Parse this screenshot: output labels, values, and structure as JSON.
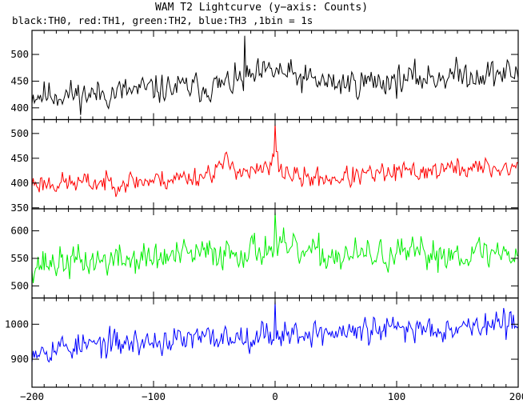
{
  "chart_data": {
    "type": "line",
    "title": "WAM T2 Lightcurve (y−axis: Counts)",
    "subtitle": "black:TH0, red:TH1, green:TH2, blue:TH3 ,1bin = 1s",
    "xlim": [
      -200,
      200
    ],
    "x_ticks": [
      -200,
      -100,
      0,
      100,
      200
    ],
    "x_tick_labels": [
      "−200",
      "−100",
      "0",
      "100",
      "200"
    ],
    "bin_seconds": 1,
    "panels": [
      {
        "series": "TH0",
        "color": "#000000",
        "ylim": [
          378,
          545
        ],
        "y_ticks": [
          400,
          450,
          500
        ],
        "y_tick_labels": [
          "400",
          "450",
          "500"
        ],
        "trend": [
          [
            -200,
            425
          ],
          [
            -150,
            425
          ],
          [
            -100,
            435
          ],
          [
            -50,
            440
          ],
          [
            -20,
            455
          ],
          [
            0,
            470
          ],
          [
            20,
            455
          ],
          [
            50,
            445
          ],
          [
            100,
            452
          ],
          [
            150,
            462
          ],
          [
            200,
            465
          ]
        ],
        "peak_x": -25,
        "peak_y": 535,
        "noise": 28,
        "seed": 11
      },
      {
        "series": "TH1",
        "color": "#ff0000",
        "ylim": [
          348,
          528
        ],
        "y_ticks": [
          350,
          400,
          450,
          500
        ],
        "y_tick_labels": [
          "350",
          "400",
          "450",
          "500"
        ],
        "trend": [
          [
            -200,
            400
          ],
          [
            -150,
            400
          ],
          [
            -100,
            405
          ],
          [
            -60,
            415
          ],
          [
            -40,
            440
          ],
          [
            -20,
            420
          ],
          [
            -3,
            430
          ],
          [
            0,
            470
          ],
          [
            3,
            430
          ],
          [
            20,
            410
          ],
          [
            50,
            410
          ],
          [
            100,
            420
          ],
          [
            150,
            430
          ],
          [
            200,
            430
          ]
        ],
        "peak_x": 0,
        "peak_y": 520,
        "noise": 22,
        "seed": 23
      },
      {
        "series": "TH2",
        "color": "#00ee00",
        "ylim": [
          478,
          640
        ],
        "y_ticks": [
          500,
          550,
          600
        ],
        "y_tick_labels": [
          "500",
          "550",
          "600"
        ],
        "trend": [
          [
            -200,
            540
          ],
          [
            -150,
            545
          ],
          [
            -100,
            550
          ],
          [
            -50,
            560
          ],
          [
            -20,
            565
          ],
          [
            0,
            570
          ],
          [
            20,
            560
          ],
          [
            50,
            555
          ],
          [
            100,
            555
          ],
          [
            150,
            560
          ],
          [
            200,
            560
          ]
        ],
        "peak_x": 0,
        "peak_y": 635,
        "noise": 30,
        "seed": 37
      },
      {
        "series": "TH3",
        "color": "#0000ff",
        "ylim": [
          820,
          1075
        ],
        "y_ticks": [
          900,
          1000
        ],
        "y_tick_labels": [
          "900",
          "1000"
        ],
        "trend": [
          [
            -200,
            930
          ],
          [
            -150,
            940
          ],
          [
            -100,
            950
          ],
          [
            -50,
            960
          ],
          [
            0,
            975
          ],
          [
            50,
            975
          ],
          [
            100,
            985
          ],
          [
            150,
            995
          ],
          [
            200,
            1000
          ]
        ],
        "peak_x": 0,
        "peak_y": 1068,
        "noise": 40,
        "seed": 53
      }
    ]
  }
}
